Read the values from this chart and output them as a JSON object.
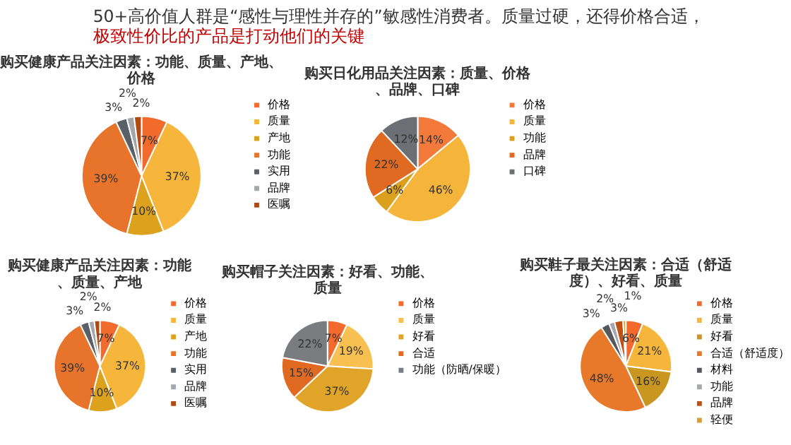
{
  "chart_data": [
    {
      "type": "other",
      "annotations": [
        "50+高价值人群是“感性与理性并存的”敏感性消费者。质量过硬，还得价格合适，",
        "极致性价比的产品是打动他们的关键"
      ],
      "colors": [
        "#333333",
        "#c00000"
      ]
    },
    {
      "type": "pie",
      "title": "购买健康产品关注因素：功能、质量、产地、价格",
      "categories": [
        "价格",
        "质量",
        "产地",
        "功能",
        "实用",
        "品牌",
        "医嘱"
      ],
      "values": [
        7,
        37,
        10,
        39,
        3,
        2,
        2
      ],
      "value_labels": [
        "7%",
        "37%",
        "10%",
        "39%",
        "3%",
        "2%",
        "2%"
      ],
      "colors": [
        "#f26b2c",
        "#f6b63c",
        "#dca21e",
        "#e8732a",
        "#5b6068",
        "#a4a8ad",
        "#b04a12"
      ],
      "legend": "right"
    },
    {
      "type": "pie",
      "title": "购买日化用品关注因素：质量、价格、品牌、口碑",
      "categories": [
        "价格",
        "质量",
        "功能",
        "品牌",
        "口碑"
      ],
      "values": [
        14,
        46,
        6,
        22,
        12
      ],
      "value_labels": [
        "14%",
        "46%",
        "6%",
        "22%",
        "12%"
      ],
      "colors": [
        "#f47a3c",
        "#f5b53a",
        "#dba01e",
        "#e06a22",
        "#6c6f74"
      ],
      "legend": "right"
    },
    {
      "type": "pie",
      "title": "购买健康产品关注因素：功能、质量、产地",
      "categories": [
        "价格",
        "质量",
        "产地",
        "功能",
        "实用",
        "品牌",
        "医嘱"
      ],
      "values": [
        7,
        37,
        10,
        39,
        3,
        2,
        2
      ],
      "value_labels": [
        "7%",
        "37%",
        "10%",
        "39%",
        "3%",
        "2%",
        "2%"
      ],
      "colors": [
        "#f26b2c",
        "#f6b63c",
        "#dca21e",
        "#e8732a",
        "#5b6068",
        "#a4a8ad",
        "#b04a12"
      ],
      "legend": "right"
    },
    {
      "type": "pie",
      "title": "购买帽子关注因素：好看、功能、质量",
      "categories": [
        "价格",
        "质量",
        "好看",
        "合适",
        "功能（防晒/保暖）"
      ],
      "values": [
        7,
        19,
        37,
        15,
        22
      ],
      "value_labels": [
        "7%",
        "19%",
        "37%",
        "15%",
        "22%"
      ],
      "colors": [
        "#f26b2c",
        "#f8c050",
        "#e0a428",
        "#e06a22",
        "#7a7c80"
      ],
      "legend": "right"
    },
    {
      "type": "pie",
      "title": "购买鞋子最关注因素：合适（舒适度）、好看、质量",
      "categories": [
        "价格",
        "质量",
        "好看",
        "合适（舒适度）",
        "材料",
        "功能",
        "品牌",
        "轻便"
      ],
      "values": [
        6,
        21,
        16,
        48,
        3,
        2,
        3,
        1
      ],
      "value_labels": [
        "6%",
        "21%",
        "16%",
        "48%",
        "3%",
        "2%",
        "3%",
        "1%"
      ],
      "colors": [
        "#f26b2c",
        "#f6b63c",
        "#c99620",
        "#e8782a",
        "#55595e",
        "#a4a8ad",
        "#c05014",
        "#d9a030"
      ],
      "legend": "right"
    }
  ]
}
